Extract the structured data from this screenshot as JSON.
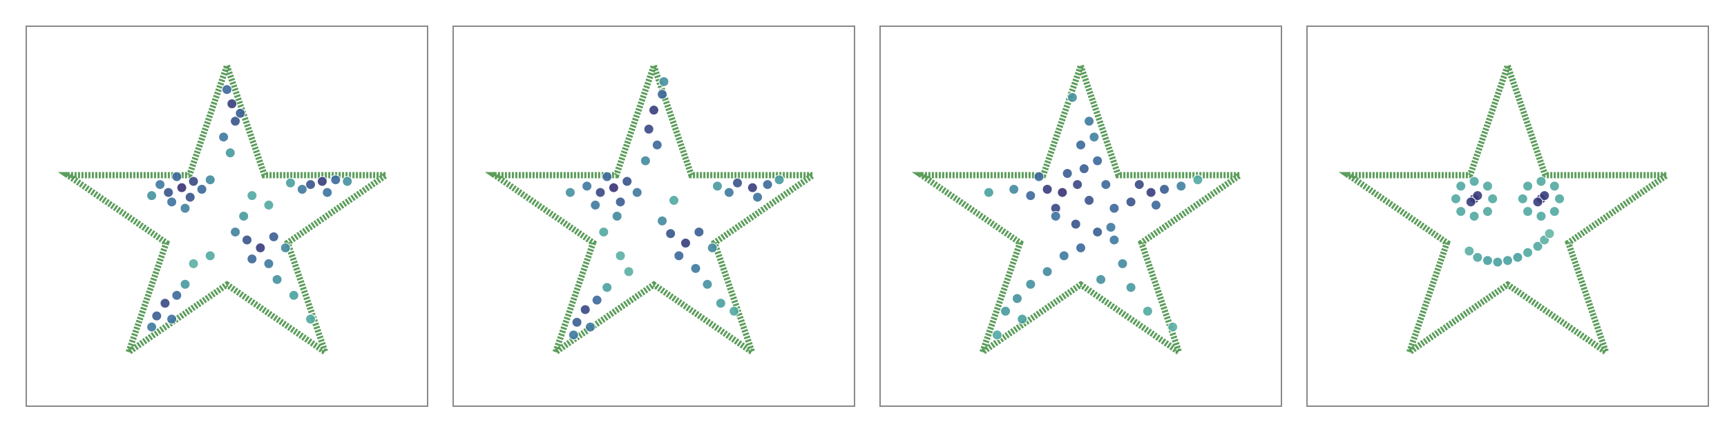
{
  "chart_data": [
    {
      "type": "scatter",
      "xlim": [
        -1.2,
        1.2
      ],
      "ylim": [
        -1.15,
        1.25
      ],
      "colormap": [
        "#8fd1ab",
        "#4aa3a0",
        "#3b6f9e",
        "#37286e"
      ],
      "outline": {
        "color": "#5b9d5b",
        "x": [
          0,
          0.2245,
          0.951,
          0.363,
          0.588,
          0,
          -0.588,
          -0.363,
          -0.951,
          -0.2245,
          0
        ],
        "y": [
          1,
          0.309,
          0.309,
          -0.118,
          -0.809,
          -0.382,
          -0.809,
          -0.118,
          0.309,
          0.309,
          1
        ]
      },
      "x": [
        -0.27,
        -0.35,
        -0.2,
        -0.3,
        -0.4,
        -0.22,
        -0.15,
        -0.33,
        -0.45,
        -0.25,
        -0.1,
        0.03,
        0,
        0.05,
        -0.02,
        0.08,
        0.02,
        0.57,
        0.5,
        0.65,
        0.45,
        0.6,
        0.72,
        0.38,
        0.2,
        0.12,
        0.28,
        0.15,
        0.25,
        0.05,
        0.3,
        0.35,
        0.1,
        0.4,
        -0.37,
        -0.42,
        -0.3,
        -0.45,
        -0.33,
        -0.25,
        0.15,
        0.25,
        -0.1,
        -0.2,
        0.5
      ],
      "y": [
        0.23,
        0.2,
        0.27,
        0.3,
        0.25,
        0.17,
        0.22,
        0.14,
        0.18,
        0.1,
        0.28,
        0.76,
        0.85,
        0.65,
        0.55,
        0.7,
        0.45,
        0.27,
        0.25,
        0.28,
        0.22,
        0.2,
        0.27,
        0.26,
        -0.15,
        -0.1,
        -0.08,
        -0.22,
        -0.25,
        -0.05,
        -0.35,
        -0.15,
        0.05,
        -0.45,
        -0.5,
        -0.58,
        -0.45,
        -0.65,
        -0.6,
        -0.38,
        0.18,
        0.12,
        -0.2,
        -0.25,
        -0.6
      ],
      "c": [
        0.95,
        0.8,
        0.85,
        0.7,
        0.6,
        0.8,
        0.7,
        0.65,
        0.45,
        0.55,
        0.5,
        0.9,
        0.7,
        0.8,
        0.6,
        0.75,
        0.4,
        0.9,
        0.8,
        0.7,
        0.6,
        0.65,
        0.45,
        0.35,
        0.9,
        0.8,
        0.75,
        0.7,
        0.6,
        0.55,
        0.45,
        0.5,
        0.4,
        0.35,
        0.85,
        0.75,
        0.7,
        0.6,
        0.65,
        0.4,
        0.3,
        0.3,
        0.3,
        0.25,
        0.3
      ]
    },
    {
      "type": "scatter",
      "xlim": [
        -1.2,
        1.2
      ],
      "ylim": [
        -1.15,
        1.25
      ],
      "colormap": [
        "#8fd1ab",
        "#4aa3a0",
        "#3b6f9e",
        "#37286e"
      ],
      "outline": {
        "color": "#5b9d5b",
        "x": [
          0,
          0.2245,
          0.951,
          0.363,
          0.588,
          0,
          -0.588,
          -0.363,
          -0.951,
          -0.2245,
          0
        ],
        "y": [
          1,
          0.309,
          0.309,
          -0.118,
          -0.809,
          -0.382,
          -0.809,
          -0.118,
          0.309,
          0.309,
          1
        ]
      },
      "x": [
        -0.24,
        -0.32,
        -0.16,
        -0.28,
        -0.4,
        -0.2,
        -0.1,
        -0.35,
        -0.5,
        -0.22,
        0,
        0.05,
        -0.03,
        0.02,
        -0.05,
        0.06,
        0.59,
        0.5,
        0.68,
        0.45,
        0.62,
        0.75,
        0.38,
        0.19,
        0.1,
        0.27,
        0.15,
        0.25,
        0.05,
        0.32,
        0.35,
        0.4,
        -0.41,
        -0.46,
        -0.34,
        -0.48,
        -0.38,
        -0.28,
        -0.2,
        -0.15,
        0.12,
        0.48,
        -0.3
      ],
      "y": [
        0.23,
        0.2,
        0.27,
        0.3,
        0.24,
        0.14,
        0.2,
        0.12,
        0.2,
        0.05,
        0.72,
        0.82,
        0.6,
        0.5,
        0.4,
        0.9,
        0.23,
        0.26,
        0.25,
        0.2,
        0.17,
        0.28,
        0.24,
        -0.12,
        -0.06,
        -0.05,
        -0.2,
        -0.28,
        0.02,
        -0.38,
        -0.15,
        -0.5,
        -0.54,
        -0.62,
        -0.48,
        -0.7,
        -0.65,
        -0.4,
        -0.2,
        -0.3,
        0.15,
        -0.55,
        -0.05
      ],
      "c": [
        0.95,
        0.85,
        0.8,
        0.7,
        0.6,
        0.75,
        0.6,
        0.6,
        0.45,
        0.5,
        0.9,
        0.7,
        0.85,
        0.7,
        0.5,
        0.45,
        0.9,
        0.8,
        0.7,
        0.6,
        0.65,
        0.4,
        0.4,
        0.9,
        0.8,
        0.75,
        0.7,
        0.6,
        0.5,
        0.45,
        0.5,
        0.35,
        0.85,
        0.75,
        0.7,
        0.6,
        0.6,
        0.35,
        0.25,
        0.25,
        0.3,
        0.3,
        0.3
      ]
    },
    {
      "type": "scatter",
      "xlim": [
        -1.2,
        1.2
      ],
      "ylim": [
        -1.15,
        1.25
      ],
      "colormap": [
        "#8fd1ab",
        "#4aa3a0",
        "#3b6f9e",
        "#37286e"
      ],
      "outline": {
        "color": "#5b9d5b",
        "x": [
          0,
          0.2245,
          0.951,
          0.363,
          0.588,
          0,
          -0.588,
          -0.363,
          -0.951,
          -0.2245,
          0
        ],
        "y": [
          1,
          0.309,
          0.309,
          -0.118,
          -0.809,
          -0.382,
          -0.809,
          -0.118,
          0.309,
          0.309,
          1
        ]
      },
      "x": [
        -0.11,
        -0.2,
        -0.02,
        -0.15,
        -0.3,
        -0.08,
        0.05,
        -0.25,
        -0.4,
        0.42,
        0.35,
        0.5,
        0.3,
        0.45,
        0.6,
        0.2,
        0.15,
        0,
        0.05,
        0.1,
        -0.05,
        0.02,
        0.08,
        -0.03,
        0.1,
        0.2,
        0,
        -0.1,
        -0.2,
        -0.3,
        -0.38,
        -0.45,
        -0.35,
        -0.5,
        0.25,
        0.3,
        0.4,
        0.12,
        -0.55,
        0.7,
        -0.15,
        0.18,
        0.55
      ],
      "y": [
        0.2,
        0.22,
        0.25,
        0.1,
        0.18,
        0.32,
        0.15,
        0.3,
        0.22,
        0.2,
        0.25,
        0.22,
        0.14,
        0.12,
        0.24,
        0.1,
        0.25,
        0.5,
        0.65,
        0.4,
        0.8,
        0.35,
        0.55,
        0,
        -0.05,
        -0.1,
        -0.15,
        -0.2,
        -0.3,
        -0.38,
        -0.47,
        -0.55,
        -0.6,
        -0.7,
        -0.25,
        -0.4,
        -0.55,
        -0.35,
        0.2,
        0.28,
        0.05,
        -0.02,
        -0.65
      ],
      "c": [
        0.95,
        0.9,
        0.85,
        0.85,
        0.7,
        0.75,
        0.8,
        0.7,
        0.5,
        0.9,
        0.85,
        0.75,
        0.8,
        0.7,
        0.55,
        0.7,
        0.7,
        0.7,
        0.6,
        0.7,
        0.45,
        0.75,
        0.55,
        0.8,
        0.75,
        0.6,
        0.7,
        0.6,
        0.5,
        0.45,
        0.45,
        0.4,
        0.35,
        0.3,
        0.5,
        0.4,
        0.3,
        0.45,
        0.35,
        0.3,
        0.65,
        0.6,
        0.25
      ]
    },
    {
      "type": "scatter",
      "xlim": [
        -1.2,
        1.2
      ],
      "ylim": [
        -1.15,
        1.25
      ],
      "colormap": [
        "#8fd1ab",
        "#4aa3a0",
        "#3b6f9e",
        "#37286e"
      ],
      "outline": {
        "color": "#5b9d5b",
        "x": [
          0,
          0.2245,
          0.951,
          0.363,
          0.588,
          0,
          -0.588,
          -0.363,
          -0.951,
          -0.2245,
          0
        ],
        "y": [
          1,
          0.309,
          0.309,
          -0.118,
          -0.809,
          -0.382,
          -0.809,
          -0.118,
          0.309,
          0.309,
          1
        ]
      },
      "x": [
        -0.2,
        -0.18,
        -0.22,
        -0.31,
        -0.28,
        -0.2,
        -0.12,
        -0.09,
        -0.12,
        -0.2,
        -0.28,
        0.2,
        0.22,
        0.18,
        0.09,
        0.12,
        0.2,
        0.28,
        0.31,
        0.28,
        0.2,
        0.12,
        -0.23,
        -0.18,
        -0.12,
        -0.06,
        0,
        0.06,
        0.12,
        0.18,
        0.22,
        0.25
      ],
      "y": [
        0.16,
        0.18,
        0.14,
        0.16,
        0.24,
        0.27,
        0.24,
        0.16,
        0.08,
        0.05,
        0.08,
        0.16,
        0.18,
        0.14,
        0.16,
        0.24,
        0.27,
        0.24,
        0.16,
        0.08,
        0.05,
        0.08,
        -0.17,
        -0.21,
        -0.23,
        -0.24,
        -0.23,
        -0.21,
        -0.18,
        -0.14,
        -0.1,
        -0.06
      ],
      "c": [
        0.95,
        0.9,
        0.9,
        0.3,
        0.3,
        0.3,
        0.3,
        0.3,
        0.3,
        0.3,
        0.3,
        0.95,
        0.9,
        0.9,
        0.3,
        0.3,
        0.3,
        0.3,
        0.3,
        0.3,
        0.3,
        0.3,
        0.25,
        0.3,
        0.35,
        0.35,
        0.35,
        0.35,
        0.3,
        0.3,
        0.25,
        0.2
      ]
    }
  ]
}
